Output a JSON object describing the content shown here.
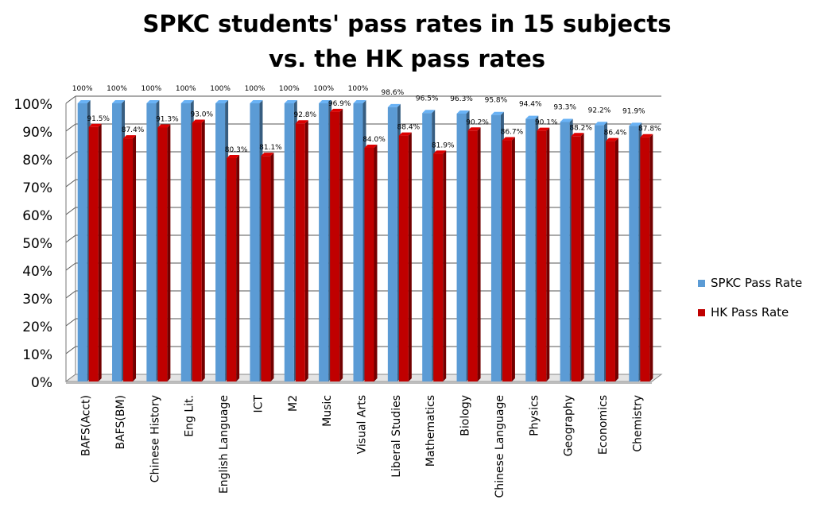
{
  "chart_data": {
    "type": "bar",
    "title": "SPKC students' pass rates in 15 subjects",
    "subtitle": "vs. the HK pass rates",
    "categories": [
      "BAFS(Acct)",
      "BAFS(BM)",
      "Chinese History",
      "Eng Lit.",
      "English Language",
      "ICT",
      "M2",
      "Music",
      "Visual Arts",
      "Liberal Studies",
      "Mathematics",
      "Biology",
      "Chinese Language",
      "Physics",
      "Geography",
      "Economics",
      "Chemistry"
    ],
    "series": [
      {
        "name": "SPKC Pass Rate",
        "color": "#5b9bd5",
        "values": [
          100,
          100,
          100,
          100,
          100,
          100,
          100,
          100,
          100,
          98.6,
          96.5,
          96.3,
          95.8,
          94.4,
          93.3,
          92.2,
          91.9
        ],
        "labels": [
          "100%",
          "100%",
          "100%",
          "100%",
          "100%",
          "100%",
          "100%",
          "100%",
          "100%",
          "98.6%",
          "96.5%",
          "96.3%",
          "95.8%",
          "94.4%",
          "93.3%",
          "92.2%",
          "91.9%"
        ]
      },
      {
        "name": "HK Pass Rate",
        "color": "#c00000",
        "values": [
          91.5,
          87.4,
          91.3,
          93.0,
          80.3,
          81.1,
          92.8,
          96.9,
          84.0,
          88.4,
          81.9,
          90.2,
          86.7,
          90.1,
          88.2,
          86.4,
          87.8
        ],
        "labels": [
          "91.5%",
          "87.4%",
          "91.3%",
          "93.0%",
          "80.3%",
          "81.1%",
          "92.8%",
          "96.9%",
          "84.0%",
          "88.4%",
          "81.9%",
          "90.2%",
          "86.7%",
          "90.1%",
          "88.2%",
          "86.4%",
          "87.8%"
        ]
      }
    ],
    "yticks": [
      "0%",
      "10%",
      "20%",
      "30%",
      "40%",
      "50%",
      "60%",
      "70%",
      "80%",
      "90%",
      "100%"
    ],
    "ylim": [
      0,
      100
    ],
    "grid": true,
    "legend_position": "right"
  }
}
